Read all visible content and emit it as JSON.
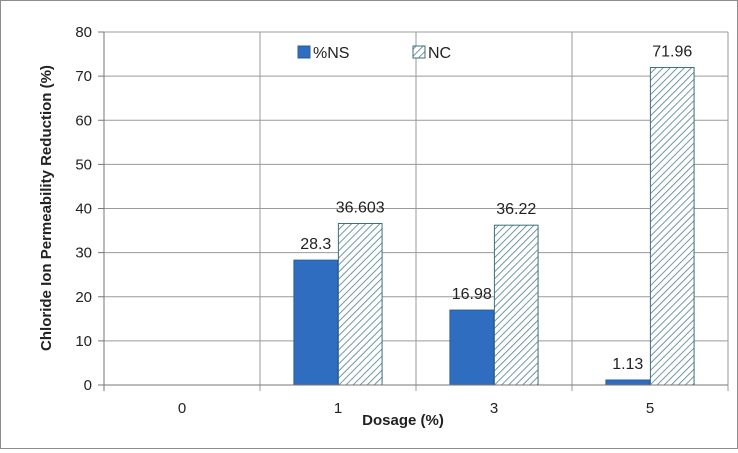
{
  "chart_data": {
    "type": "bar",
    "title": "",
    "xlabel": "Dosage (%)",
    "ylabel": "Chloride Ion Permeability Reduction (%)",
    "categories": [
      "0",
      "1",
      "3",
      "5"
    ],
    "series": [
      {
        "name": "%NS",
        "values": [
          0,
          28.3,
          16.98,
          1.13
        ],
        "labels": [
          "",
          "28.3",
          "16.98",
          "1.13"
        ],
        "color": "#2e6dbf",
        "pattern": "solid"
      },
      {
        "name": "NC",
        "values": [
          0,
          36.603,
          36.22,
          71.96
        ],
        "labels": [
          "",
          "36.603",
          "36.22",
          "71.96"
        ],
        "color": "#3d6f7e",
        "pattern": "hatched"
      }
    ],
    "ylim": [
      0,
      80
    ],
    "yticks": [
      "0",
      "10",
      "20",
      "30",
      "40",
      "50",
      "60",
      "70",
      "80"
    ],
    "grid": true,
    "legend_position": "top-center"
  }
}
